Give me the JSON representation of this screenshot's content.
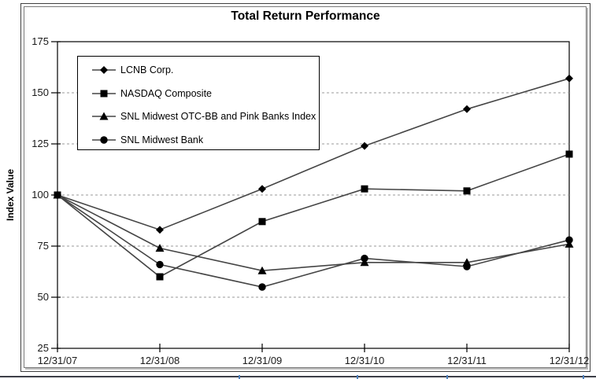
{
  "chart_data": {
    "type": "line",
    "title": "Total Return Performance",
    "ylabel": "Index Value",
    "categories": [
      "12/31/07",
      "12/31/08",
      "12/31/09",
      "12/31/10",
      "12/31/11",
      "12/31/12"
    ],
    "yticks": [
      175,
      150,
      125,
      100,
      75,
      50,
      25
    ],
    "ylim": [
      25,
      175
    ],
    "grid": "horizontal-dashed",
    "legend_position": "top-left-inside",
    "series": [
      {
        "name": "LCNB Corp.",
        "marker": "diamond",
        "values": [
          100,
          83,
          103,
          124,
          142,
          157
        ]
      },
      {
        "name": "NASDAQ Composite",
        "marker": "square",
        "values": [
          100,
          60,
          87,
          103,
          102,
          120
        ]
      },
      {
        "name": "SNL Midwest OTC-BB and Pink Banks Index",
        "marker": "triangle",
        "values": [
          100,
          74,
          63,
          67,
          67,
          76
        ]
      },
      {
        "name": "SNL Midwest Bank",
        "marker": "circle",
        "values": [
          100,
          66,
          55,
          69,
          65,
          78
        ]
      }
    ],
    "colors": {
      "line": "#454545",
      "marker": "#000000",
      "grid": "#9a9a9a",
      "axis": "#000000",
      "text": "#000000",
      "footer_rule": "#3d3f48",
      "footer_tick": "#4f81bd"
    }
  },
  "footer": {
    "tick_positions": [
      303,
      453,
      567,
      740
    ]
  }
}
